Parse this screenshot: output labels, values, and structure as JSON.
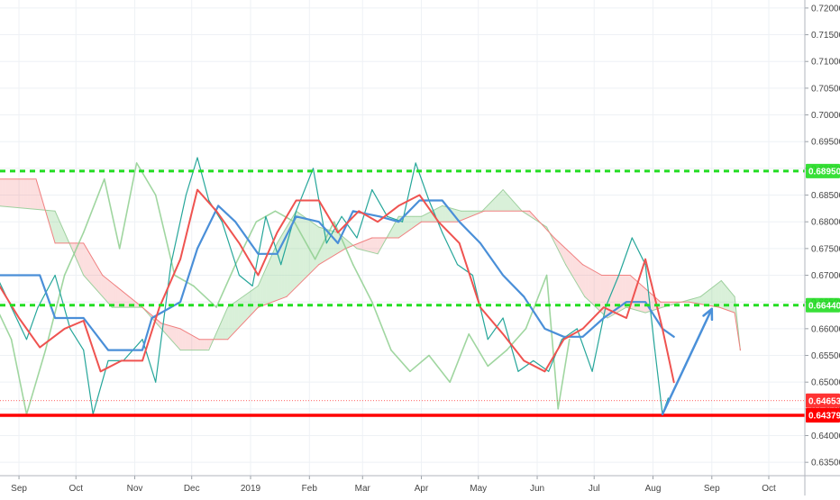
{
  "chart_data": {
    "type": "line",
    "title": "",
    "xlabel": "",
    "ylabel": "",
    "x_ticks": [
      "Sep",
      "Oct",
      "Nov",
      "Dec",
      "2019",
      "Feb",
      "Mar",
      "Apr",
      "May",
      "Jun",
      "Jul",
      "Aug",
      "Sep",
      "Oct"
    ],
    "y_ticks": [
      "0.72000",
      "0.71500",
      "0.71000",
      "0.70500",
      "0.70000",
      "0.69500",
      "0.69000",
      "0.68500",
      "0.68000",
      "0.67500",
      "0.67000",
      "0.66500",
      "0.66000",
      "0.65500",
      "0.65000",
      "0.64500",
      "0.64000",
      "0.63500"
    ],
    "ylim": [
      0.6325,
      0.7215
    ],
    "grid": true,
    "horizontal_levels": [
      {
        "label": "0.68950",
        "value": 0.6895,
        "style": "dashed",
        "color": "#22dd22"
      },
      {
        "label": "0.66440",
        "value": 0.6644,
        "style": "dashed",
        "color": "#22dd22"
      },
      {
        "label": "0.64379",
        "value": 0.64379,
        "style": "solid",
        "color": "#ff0000"
      }
    ],
    "price_labels": [
      {
        "label": "0.64653",
        "value": 0.64653,
        "color": "#ff3333"
      },
      {
        "label": "0.64379",
        "value": 0.64379,
        "color": "#ff0000"
      }
    ],
    "projection_arrow": {
      "from": {
        "x": "2019-08-06",
        "y": 0.644
      },
      "to": {
        "x": "2019-09-01",
        "y": 0.6637
      },
      "color": "#4a90d9"
    },
    "series": [
      {
        "role": "tenkan",
        "color": "#ef5350",
        "values": [
          {
            "x": "2018-08-20",
            "y": 0.669
          },
          {
            "x": "2018-09-01",
            "y": 0.662
          },
          {
            "x": "2018-09-12",
            "y": 0.6565
          },
          {
            "x": "2018-09-25",
            "y": 0.66
          },
          {
            "x": "2018-10-05",
            "y": 0.6615
          },
          {
            "x": "2018-10-14",
            "y": 0.652
          },
          {
            "x": "2018-10-25",
            "y": 0.654
          },
          {
            "x": "2018-11-05",
            "y": 0.654
          },
          {
            "x": "2018-11-14",
            "y": 0.664
          },
          {
            "x": "2018-11-25",
            "y": 0.673
          },
          {
            "x": "2018-12-04",
            "y": 0.686
          },
          {
            "x": "2018-12-14",
            "y": 0.682
          },
          {
            "x": "2018-12-26",
            "y": 0.676
          },
          {
            "x": "2019-01-05",
            "y": 0.67
          },
          {
            "x": "2019-01-15",
            "y": 0.678
          },
          {
            "x": "2019-01-25",
            "y": 0.684
          },
          {
            "x": "2019-02-06",
            "y": 0.684
          },
          {
            "x": "2019-02-16",
            "y": 0.678
          },
          {
            "x": "2019-02-27",
            "y": 0.682
          },
          {
            "x": "2019-03-09",
            "y": 0.68
          },
          {
            "x": "2019-03-20",
            "y": 0.683
          },
          {
            "x": "2019-03-31",
            "y": 0.685
          },
          {
            "x": "2019-04-10",
            "y": 0.68
          },
          {
            "x": "2019-04-21",
            "y": 0.676
          },
          {
            "x": "2019-05-02",
            "y": 0.664
          },
          {
            "x": "2019-05-14",
            "y": 0.659
          },
          {
            "x": "2019-05-25",
            "y": 0.654
          },
          {
            "x": "2019-06-05",
            "y": 0.652
          },
          {
            "x": "2019-06-15",
            "y": 0.658
          },
          {
            "x": "2019-06-25",
            "y": 0.66
          },
          {
            "x": "2019-07-06",
            "y": 0.664
          },
          {
            "x": "2019-07-18",
            "y": 0.662
          },
          {
            "x": "2019-07-28",
            "y": 0.673
          },
          {
            "x": "2019-08-06",
            "y": 0.66
          },
          {
            "x": "2019-08-12",
            "y": 0.65
          }
        ]
      },
      {
        "role": "kijun",
        "color": "#4a8fd8",
        "values": [
          {
            "x": "2018-08-20",
            "y": 0.67
          },
          {
            "x": "2018-09-12",
            "y": 0.67
          },
          {
            "x": "2018-09-20",
            "y": 0.662
          },
          {
            "x": "2018-10-05",
            "y": 0.662
          },
          {
            "x": "2018-10-18",
            "y": 0.656
          },
          {
            "x": "2018-11-05",
            "y": 0.656
          },
          {
            "x": "2018-11-10",
            "y": 0.662
          },
          {
            "x": "2018-11-25",
            "y": 0.665
          },
          {
            "x": "2018-12-04",
            "y": 0.675
          },
          {
            "x": "2018-12-15",
            "y": 0.683
          },
          {
            "x": "2018-12-24",
            "y": 0.68
          },
          {
            "x": "2019-01-05",
            "y": 0.674
          },
          {
            "x": "2019-01-15",
            "y": 0.674
          },
          {
            "x": "2019-01-25",
            "y": 0.681
          },
          {
            "x": "2019-02-06",
            "y": 0.68
          },
          {
            "x": "2019-02-16",
            "y": 0.676
          },
          {
            "x": "2019-02-24",
            "y": 0.682
          },
          {
            "x": "2019-03-10",
            "y": 0.681
          },
          {
            "x": "2019-03-20",
            "y": 0.68
          },
          {
            "x": "2019-03-31",
            "y": 0.684
          },
          {
            "x": "2019-04-12",
            "y": 0.684
          },
          {
            "x": "2019-04-21",
            "y": 0.68
          },
          {
            "x": "2019-05-02",
            "y": 0.676
          },
          {
            "x": "2019-05-14",
            "y": 0.67
          },
          {
            "x": "2019-05-25",
            "y": 0.666
          },
          {
            "x": "2019-06-05",
            "y": 0.66
          },
          {
            "x": "2019-06-15",
            "y": 0.6585
          },
          {
            "x": "2019-06-25",
            "y": 0.6585
          },
          {
            "x": "2019-07-06",
            "y": 0.662
          },
          {
            "x": "2019-07-18",
            "y": 0.665
          },
          {
            "x": "2019-07-28",
            "y": 0.665
          },
          {
            "x": "2019-08-06",
            "y": 0.66
          },
          {
            "x": "2019-08-12",
            "y": 0.6585
          }
        ]
      },
      {
        "role": "chikou",
        "color": "#8fcf8f",
        "values": [
          {
            "x": "2018-08-20",
            "y": 0.664
          },
          {
            "x": "2018-08-28",
            "y": 0.658
          },
          {
            "x": "2018-09-05",
            "y": 0.644
          },
          {
            "x": "2018-09-15",
            "y": 0.656
          },
          {
            "x": "2018-09-25",
            "y": 0.67
          },
          {
            "x": "2018-10-05",
            "y": 0.678
          },
          {
            "x": "2018-10-16",
            "y": 0.688
          },
          {
            "x": "2018-10-24",
            "y": 0.675
          },
          {
            "x": "2018-11-02",
            "y": 0.691
          },
          {
            "x": "2018-11-12",
            "y": 0.685
          },
          {
            "x": "2018-11-22",
            "y": 0.67
          },
          {
            "x": "2018-12-02",
            "y": 0.668
          },
          {
            "x": "2018-12-14",
            "y": 0.664
          },
          {
            "x": "2018-12-24",
            "y": 0.672
          },
          {
            "x": "2019-01-04",
            "y": 0.68
          },
          {
            "x": "2019-01-14",
            "y": 0.682
          },
          {
            "x": "2019-01-24",
            "y": 0.68
          },
          {
            "x": "2019-02-04",
            "y": 0.673
          },
          {
            "x": "2019-02-14",
            "y": 0.68
          },
          {
            "x": "2019-02-24",
            "y": 0.672
          },
          {
            "x": "2019-03-06",
            "y": 0.665
          },
          {
            "x": "2019-03-16",
            "y": 0.656
          },
          {
            "x": "2019-03-26",
            "y": 0.652
          },
          {
            "x": "2019-04-05",
            "y": 0.655
          },
          {
            "x": "2019-04-16",
            "y": 0.65
          },
          {
            "x": "2019-04-26",
            "y": 0.659
          },
          {
            "x": "2019-05-06",
            "y": 0.653
          },
          {
            "x": "2019-05-16",
            "y": 0.656
          },
          {
            "x": "2019-05-26",
            "y": 0.66
          },
          {
            "x": "2019-06-06",
            "y": 0.67
          },
          {
            "x": "2019-06-12",
            "y": 0.645
          },
          {
            "x": "2019-06-18",
            "y": 0.658
          }
        ]
      },
      {
        "role": "senkou_a",
        "color": "#9ed09e",
        "values": [
          {
            "x": "2018-08-20",
            "y": 0.683
          },
          {
            "x": "2018-09-20",
            "y": 0.682
          },
          {
            "x": "2018-10-05",
            "y": 0.67
          },
          {
            "x": "2018-10-20",
            "y": 0.664
          },
          {
            "x": "2018-11-05",
            "y": 0.664
          },
          {
            "x": "2018-11-15",
            "y": 0.66
          },
          {
            "x": "2018-11-25",
            "y": 0.656
          },
          {
            "x": "2018-12-10",
            "y": 0.656
          },
          {
            "x": "2018-12-20",
            "y": 0.664
          },
          {
            "x": "2019-01-05",
            "y": 0.668
          },
          {
            "x": "2019-01-15",
            "y": 0.676
          },
          {
            "x": "2019-01-25",
            "y": 0.682
          },
          {
            "x": "2019-02-06",
            "y": 0.679
          },
          {
            "x": "2019-02-16",
            "y": 0.678
          },
          {
            "x": "2019-02-26",
            "y": 0.675
          },
          {
            "x": "2019-03-09",
            "y": 0.674
          },
          {
            "x": "2019-03-20",
            "y": 0.681
          },
          {
            "x": "2019-04-01",
            "y": 0.681
          },
          {
            "x": "2019-04-12",
            "y": 0.683
          },
          {
            "x": "2019-04-22",
            "y": 0.682
          },
          {
            "x": "2019-05-03",
            "y": 0.682
          },
          {
            "x": "2019-05-14",
            "y": 0.686
          },
          {
            "x": "2019-05-24",
            "y": 0.682
          },
          {
            "x": "2019-06-06",
            "y": 0.679
          },
          {
            "x": "2019-06-16",
            "y": 0.672
          },
          {
            "x": "2019-06-26",
            "y": 0.666
          },
          {
            "x": "2019-07-08",
            "y": 0.662
          },
          {
            "x": "2019-07-18",
            "y": 0.664
          },
          {
            "x": "2019-07-28",
            "y": 0.663
          },
          {
            "x": "2019-08-06",
            "y": 0.664
          },
          {
            "x": "2019-08-16",
            "y": 0.665
          },
          {
            "x": "2019-08-26",
            "y": 0.666
          },
          {
            "x": "2019-09-06",
            "y": 0.669
          },
          {
            "x": "2019-09-13",
            "y": 0.666
          },
          {
            "x": "2019-09-16",
            "y": 0.656
          }
        ]
      },
      {
        "role": "senkou_b",
        "color": "#f08080",
        "values": [
          {
            "x": "2018-08-20",
            "y": 0.688
          },
          {
            "x": "2018-09-10",
            "y": 0.688
          },
          {
            "x": "2018-09-20",
            "y": 0.676
          },
          {
            "x": "2018-10-05",
            "y": 0.676
          },
          {
            "x": "2018-10-15",
            "y": 0.67
          },
          {
            "x": "2018-11-05",
            "y": 0.664
          },
          {
            "x": "2018-11-15",
            "y": 0.661
          },
          {
            "x": "2018-11-25",
            "y": 0.66
          },
          {
            "x": "2018-12-05",
            "y": 0.658
          },
          {
            "x": "2018-12-20",
            "y": 0.658
          },
          {
            "x": "2019-01-05",
            "y": 0.664
          },
          {
            "x": "2019-01-20",
            "y": 0.666
          },
          {
            "x": "2019-02-06",
            "y": 0.672
          },
          {
            "x": "2019-02-20",
            "y": 0.675
          },
          {
            "x": "2019-03-06",
            "y": 0.677
          },
          {
            "x": "2019-03-20",
            "y": 0.677
          },
          {
            "x": "2019-04-01",
            "y": 0.68
          },
          {
            "x": "2019-04-20",
            "y": 0.68
          },
          {
            "x": "2019-05-04",
            "y": 0.682
          },
          {
            "x": "2019-05-28",
            "y": 0.682
          },
          {
            "x": "2019-06-10",
            "y": 0.677
          },
          {
            "x": "2019-06-25",
            "y": 0.672
          },
          {
            "x": "2019-07-05",
            "y": 0.67
          },
          {
            "x": "2019-07-20",
            "y": 0.67
          },
          {
            "x": "2019-08-05",
            "y": 0.665
          },
          {
            "x": "2019-08-20",
            "y": 0.665
          },
          {
            "x": "2019-09-05",
            "y": 0.664
          },
          {
            "x": "2019-09-13",
            "y": 0.663
          },
          {
            "x": "2019-09-16",
            "y": 0.656
          }
        ]
      },
      {
        "role": "price",
        "color": "#26a69a",
        "values": [
          {
            "x": "2018-08-20",
            "y": 0.67
          },
          {
            "x": "2018-08-28",
            "y": 0.664
          },
          {
            "x": "2018-09-05",
            "y": 0.658
          },
          {
            "x": "2018-09-11",
            "y": 0.664
          },
          {
            "x": "2018-09-20",
            "y": 0.67
          },
          {
            "x": "2018-09-28",
            "y": 0.66
          },
          {
            "x": "2018-10-05",
            "y": 0.656
          },
          {
            "x": "2018-10-10",
            "y": 0.644
          },
          {
            "x": "2018-10-18",
            "y": 0.654
          },
          {
            "x": "2018-10-26",
            "y": 0.654
          },
          {
            "x": "2018-11-05",
            "y": 0.658
          },
          {
            "x": "2018-11-12",
            "y": 0.65
          },
          {
            "x": "2018-11-20",
            "y": 0.672
          },
          {
            "x": "2018-11-28",
            "y": 0.685
          },
          {
            "x": "2018-12-04",
            "y": 0.692
          },
          {
            "x": "2018-12-10",
            "y": 0.684
          },
          {
            "x": "2018-12-17",
            "y": 0.68
          },
          {
            "x": "2018-12-26",
            "y": 0.67
          },
          {
            "x": "2019-01-02",
            "y": 0.668
          },
          {
            "x": "2019-01-09",
            "y": 0.681
          },
          {
            "x": "2019-01-17",
            "y": 0.672
          },
          {
            "x": "2019-01-25",
            "y": 0.682
          },
          {
            "x": "2019-02-03",
            "y": 0.69
          },
          {
            "x": "2019-02-10",
            "y": 0.676
          },
          {
            "x": "2019-02-18",
            "y": 0.681
          },
          {
            "x": "2019-02-26",
            "y": 0.677
          },
          {
            "x": "2019-03-06",
            "y": 0.686
          },
          {
            "x": "2019-03-14",
            "y": 0.681
          },
          {
            "x": "2019-03-22",
            "y": 0.68
          },
          {
            "x": "2019-03-29",
            "y": 0.691
          },
          {
            "x": "2019-04-05",
            "y": 0.684
          },
          {
            "x": "2019-04-12",
            "y": 0.678
          },
          {
            "x": "2019-04-20",
            "y": 0.672
          },
          {
            "x": "2019-04-28",
            "y": 0.67
          },
          {
            "x": "2019-05-06",
            "y": 0.658
          },
          {
            "x": "2019-05-14",
            "y": 0.662
          },
          {
            "x": "2019-05-22",
            "y": 0.652
          },
          {
            "x": "2019-05-30",
            "y": 0.654
          },
          {
            "x": "2019-06-07",
            "y": 0.652
          },
          {
            "x": "2019-06-14",
            "y": 0.658
          },
          {
            "x": "2019-06-22",
            "y": 0.66
          },
          {
            "x": "2019-06-30",
            "y": 0.652
          },
          {
            "x": "2019-07-07",
            "y": 0.664
          },
          {
            "x": "2019-07-14",
            "y": 0.67
          },
          {
            "x": "2019-07-21",
            "y": 0.677
          },
          {
            "x": "2019-07-28",
            "y": 0.672
          },
          {
            "x": "2019-08-02",
            "y": 0.656
          },
          {
            "x": "2019-08-06",
            "y": 0.644
          },
          {
            "x": "2019-08-09",
            "y": 0.647
          }
        ]
      }
    ]
  }
}
